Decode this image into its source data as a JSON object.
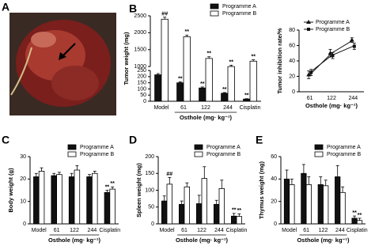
{
  "panel_a": {
    "label": "A"
  },
  "chart_data": [
    {
      "type": "bar",
      "label": "B",
      "ylabel": "Tumor weight (mg)",
      "xlabel": "Osthole (mg· kg⁻¹)",
      "categories": [
        "Model",
        "61",
        "122",
        "244",
        "Cisplatin"
      ],
      "ylim": [
        0,
        2500
      ],
      "ybreak": [
        250,
        1000
      ],
      "yticks": [
        0,
        50,
        100,
        150,
        200,
        250,
        1000,
        1500,
        2000,
        2500
      ],
      "legend": "upper right",
      "series": [
        {
          "name": "Programme A",
          "color": "#111111",
          "values": [
            215,
            150,
            108,
            65,
            18
          ],
          "errors": [
            10,
            8,
            8,
            6,
            3
          ],
          "significance": [
            null,
            "**",
            "**",
            "**",
            "**"
          ]
        },
        {
          "name": "Programme B",
          "color": "#ffffff",
          "values": [
            2400,
            1880,
            1240,
            1000,
            1160
          ],
          "errors": [
            60,
            50,
            50,
            40,
            40
          ],
          "significance": [
            "##",
            "**",
            "**",
            "**",
            "**"
          ]
        }
      ]
    },
    {
      "type": "line",
      "ylabel": "Tumor inhibition rate/%",
      "xlabel": "Osthole (mg· kg⁻¹)",
      "categories": [
        "61",
        "122",
        "244"
      ],
      "ylim": [
        0,
        80
      ],
      "yticks": [
        0,
        20,
        40,
        60,
        80
      ],
      "legend": "upper left",
      "series": [
        {
          "name": "Programme A",
          "color": "#111111",
          "marker": "triangle",
          "values": [
            22,
            50,
            67
          ],
          "errors": [
            5,
            5,
            3
          ]
        },
        {
          "name": "Programme B",
          "color": "#111111",
          "marker": "square",
          "values": [
            25,
            47,
            59
          ],
          "errors": [
            4,
            4,
            4
          ]
        }
      ]
    },
    {
      "type": "bar",
      "label": "C",
      "ylabel": "Body weight (g)",
      "xlabel": "Osthole (mg· kg⁻¹)",
      "categories": [
        "Model",
        "61",
        "122",
        "244",
        "Cisplatin"
      ],
      "ylim": [
        0,
        30
      ],
      "yticks": [
        0,
        10,
        20,
        30
      ],
      "legend": "upper right",
      "series": [
        {
          "name": "Programme A",
          "color": "#111111",
          "values": [
            21,
            21.5,
            21,
            21,
            14
          ],
          "errors": [
            1.5,
            1,
            1.5,
            1,
            1
          ],
          "significance": [
            null,
            null,
            null,
            null,
            "**"
          ]
        },
        {
          "name": "Programme B",
          "color": "#ffffff",
          "values": [
            23.5,
            22,
            24,
            22.5,
            15.5
          ],
          "errors": [
            1.5,
            1,
            2,
            1,
            1
          ],
          "significance": [
            null,
            null,
            null,
            null,
            "**"
          ]
        }
      ]
    },
    {
      "type": "bar",
      "label": "D",
      "ylabel": "Spleen weight (mg)",
      "xlabel": "Osthole (mg· kg⁻¹)",
      "categories": [
        "Model",
        "61",
        "122",
        "244",
        "Cisplatin"
      ],
      "ylim": [
        0,
        200
      ],
      "yticks": [
        0,
        50,
        100,
        150,
        200
      ],
      "legend": "upper right",
      "series": [
        {
          "name": "Programme A",
          "color": "#111111",
          "values": [
            68,
            58,
            60,
            58,
            23
          ],
          "errors": [
            15,
            10,
            25,
            12,
            8
          ],
          "significance": [
            null,
            null,
            null,
            null,
            "**"
          ]
        },
        {
          "name": "Programme B",
          "color": "#ffffff",
          "values": [
            118,
            110,
            135,
            105,
            22
          ],
          "errors": [
            20,
            12,
            35,
            25,
            8
          ],
          "significance": [
            "##",
            null,
            null,
            null,
            "**"
          ]
        }
      ]
    },
    {
      "type": "bar",
      "label": "E",
      "ylabel": "Thymus weight (mg)",
      "xlabel": "Osthole (mg· kg⁻¹)",
      "categories": [
        "Model",
        "61",
        "122",
        "244",
        "Cisplatin"
      ],
      "ylim": [
        0,
        60
      ],
      "yticks": [
        0,
        20,
        40,
        60
      ],
      "legend": "upper right",
      "series": [
        {
          "name": "Programme A",
          "color": "#111111",
          "values": [
            40,
            45,
            35,
            42,
            5
          ],
          "errors": [
            8,
            8,
            7,
            10,
            2
          ],
          "significance": [
            null,
            null,
            null,
            null,
            "**"
          ]
        },
        {
          "name": "Programme B",
          "color": "#ffffff",
          "values": [
            35,
            35,
            34,
            28,
            3
          ],
          "errors": [
            5,
            7,
            5,
            5,
            2
          ],
          "significance": [
            null,
            null,
            null,
            null,
            "**"
          ]
        }
      ]
    }
  ]
}
